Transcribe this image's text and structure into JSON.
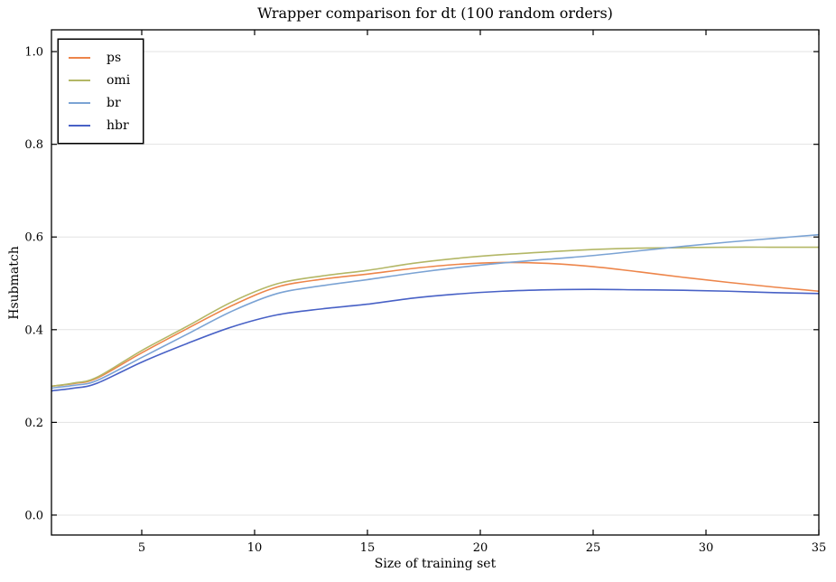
{
  "chart_data": {
    "type": "line",
    "title": "Wrapper comparison for dt (100 random orders)",
    "xlabel": "Size of training set",
    "ylabel": "Hsubmatch",
    "xlim": [
      1,
      35
    ],
    "ylim": [
      -0.043,
      1.047
    ],
    "xticks": [
      5,
      10,
      15,
      20,
      25,
      30,
      35
    ],
    "yticks": [
      0.0,
      0.2,
      0.4,
      0.6,
      0.8,
      1.0
    ],
    "grid": "horizontal",
    "grid_color": "#e3e3e3",
    "frame_color": "#000000",
    "legend_position": "upper-left",
    "x": [
      1,
      2,
      3,
      5,
      7,
      9,
      11,
      13,
      15,
      17,
      19,
      21,
      23,
      25,
      27,
      29,
      31,
      33,
      35
    ],
    "series": [
      {
        "name": "ps",
        "color": "#ed854a",
        "values": [
          0.278,
          0.284,
          0.295,
          0.35,
          0.402,
          0.452,
          0.492,
          0.509,
          0.52,
          0.532,
          0.541,
          0.545,
          0.543,
          0.536,
          0.525,
          0.513,
          0.502,
          0.492,
          0.483
        ]
      },
      {
        "name": "omi",
        "color": "#b3b766",
        "values": [
          0.278,
          0.285,
          0.297,
          0.355,
          0.407,
          0.46,
          0.499,
          0.516,
          0.528,
          0.543,
          0.554,
          0.562,
          0.568,
          0.573,
          0.576,
          0.577,
          0.578,
          0.578,
          0.578
        ]
      },
      {
        "name": "br",
        "color": "#7ba3d4",
        "values": [
          0.274,
          0.28,
          0.29,
          0.34,
          0.39,
          0.44,
          0.478,
          0.495,
          0.508,
          0.522,
          0.534,
          0.544,
          0.552,
          0.56,
          0.57,
          0.58,
          0.589,
          0.597,
          0.605
        ]
      },
      {
        "name": "hbr",
        "color": "#4861c6",
        "values": [
          0.268,
          0.274,
          0.284,
          0.33,
          0.37,
          0.406,
          0.432,
          0.445,
          0.455,
          0.468,
          0.477,
          0.483,
          0.486,
          0.487,
          0.486,
          0.485,
          0.483,
          0.48,
          0.478
        ]
      }
    ]
  }
}
